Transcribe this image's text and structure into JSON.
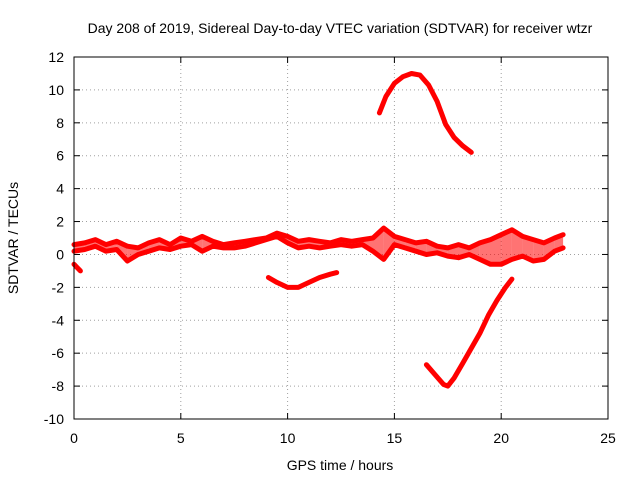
{
  "chart_data": {
    "type": "line",
    "title": "Day 208 of 2019, Sidereal Day-to-day VTEC variation (SDTVAR) for receiver wtzr",
    "xlabel": "GPS time / hours",
    "ylabel": "SDTVAR / TECUs",
    "xlim": [
      0,
      25
    ],
    "ylim": [
      -10,
      12
    ],
    "xticks": [
      0,
      5,
      10,
      15,
      20,
      25
    ],
    "yticks": [
      -10,
      -8,
      -6,
      -4,
      -2,
      0,
      2,
      4,
      6,
      8,
      10,
      12
    ],
    "grid": true,
    "series_color": "#ff0000",
    "series": [
      {
        "name": "main band upper",
        "x": [
          0,
          0.5,
          1,
          1.5,
          2,
          2.5,
          3,
          3.5,
          4,
          4.5,
          5,
          5.5,
          6,
          6.5,
          7,
          7.5,
          8,
          8.5,
          9,
          9.5,
          10,
          10.5,
          11,
          11.5,
          12,
          12.5,
          13,
          13.5,
          14,
          14.5,
          15,
          15.5,
          16,
          16.5,
          17,
          17.5,
          18,
          18.5,
          19,
          19.5,
          20,
          20.5,
          21,
          21.5,
          22,
          22.5,
          22.9
        ],
        "y": [
          0.6,
          0.7,
          0.9,
          0.6,
          0.8,
          0.5,
          0.4,
          0.7,
          0.9,
          0.6,
          1.0,
          0.8,
          1.1,
          0.8,
          0.6,
          0.7,
          0.8,
          0.9,
          1.0,
          1.3,
          1.1,
          0.8,
          0.9,
          0.8,
          0.7,
          0.9,
          0.8,
          0.9,
          1.0,
          1.6,
          1.1,
          0.9,
          0.7,
          0.8,
          0.5,
          0.4,
          0.6,
          0.4,
          0.7,
          0.9,
          1.2,
          1.5,
          1.1,
          0.9,
          0.7,
          1.0,
          1.2
        ]
      },
      {
        "name": "main band lower",
        "x": [
          0,
          0.5,
          1,
          1.5,
          2,
          2.5,
          3,
          3.5,
          4,
          4.5,
          5,
          5.5,
          6,
          6.5,
          7,
          7.5,
          8,
          8.5,
          9,
          9.5,
          10,
          10.5,
          11,
          11.5,
          12,
          12.5,
          13,
          13.5,
          14,
          14.5,
          15,
          15.5,
          16,
          16.5,
          17,
          17.5,
          18,
          18.5,
          19,
          19.5,
          20,
          20.5,
          21,
          21.5,
          22,
          22.5,
          22.9
        ],
        "y": [
          0.2,
          0.3,
          0.5,
          0.2,
          0.3,
          -0.4,
          0.0,
          0.2,
          0.4,
          0.3,
          0.5,
          0.6,
          0.2,
          0.5,
          0.4,
          0.4,
          0.5,
          0.7,
          0.9,
          1.1,
          0.7,
          0.4,
          0.5,
          0.4,
          0.5,
          0.6,
          0.5,
          0.6,
          0.2,
          -0.3,
          0.6,
          0.4,
          0.2,
          0.0,
          0.1,
          -0.1,
          -0.2,
          0.0,
          -0.3,
          -0.6,
          -0.6,
          -0.3,
          -0.1,
          -0.4,
          -0.3,
          0.2,
          0.4
        ]
      },
      {
        "name": "early dip",
        "x": [
          0,
          0.15,
          0.3
        ],
        "y": [
          -0.6,
          -0.8,
          -1.0
        ]
      },
      {
        "name": "negative arc 9-12h",
        "x": [
          9.1,
          9.5,
          10,
          10.5,
          11,
          11.5,
          12,
          12.3
        ],
        "y": [
          -1.4,
          -1.7,
          -2.0,
          -2.0,
          -1.7,
          -1.4,
          -1.2,
          -1.1
        ]
      },
      {
        "name": "positive peak 14-18.5h",
        "x": [
          14.3,
          14.6,
          15,
          15.4,
          15.8,
          16.2,
          16.6,
          17,
          17.4,
          17.8,
          18.2,
          18.6
        ],
        "y": [
          8.6,
          9.6,
          10.4,
          10.8,
          11.0,
          10.9,
          10.3,
          9.3,
          7.9,
          7.1,
          6.6,
          6.2
        ]
      },
      {
        "name": "negative trough 16.5-20.5h",
        "x": [
          16.5,
          16.9,
          17.3,
          17.5,
          17.8,
          18.2,
          18.6,
          19,
          19.4,
          19.8,
          20.2,
          20.5
        ],
        "y": [
          -6.7,
          -7.3,
          -7.9,
          -8.0,
          -7.5,
          -6.6,
          -5.7,
          -4.8,
          -3.7,
          -2.8,
          -2.0,
          -1.5
        ]
      }
    ]
  }
}
